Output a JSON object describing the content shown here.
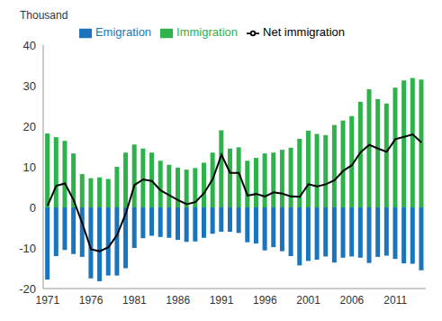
{
  "chart_data": {
    "type": "bar",
    "ylabel": "Thousand",
    "categories": [
      "1971",
      null,
      null,
      null,
      null,
      "1976",
      null,
      null,
      null,
      null,
      "1981",
      null,
      null,
      null,
      null,
      "1986",
      null,
      null,
      null,
      null,
      "1991",
      null,
      null,
      null,
      null,
      "1996",
      null,
      null,
      null,
      null,
      "2001",
      null,
      null,
      null,
      null,
      "2006",
      null,
      null,
      null,
      null,
      "2011",
      null,
      null,
      null
    ],
    "series": [
      {
        "name": "Immigration",
        "color": "#2eb24b",
        "type": "bar",
        "values": [
          18.2,
          17.3,
          16.4,
          13.3,
          8.2,
          7.2,
          7.4,
          7.0,
          10.0,
          13.5,
          15.5,
          14.5,
          13.5,
          11.5,
          10.5,
          9.8,
          9.3,
          9.7,
          11.0,
          13.5,
          19.0,
          14.5,
          14.8,
          11.5,
          12.2,
          13.3,
          13.5,
          14.2,
          14.7,
          16.9,
          18.9,
          18.1,
          17.8,
          20.3,
          21.4,
          22.5,
          26.0,
          29.1,
          26.7,
          25.6,
          29.5,
          31.3,
          31.9,
          31.5
        ]
      },
      {
        "name": "Emigration",
        "color": "#1b75bc",
        "type": "bar",
        "values": [
          -17.8,
          -12.0,
          -10.5,
          -11.5,
          -12.2,
          -17.5,
          -18.2,
          -16.8,
          -16.8,
          -15.0,
          -10.0,
          -7.6,
          -7.0,
          -7.3,
          -7.5,
          -8.0,
          -8.5,
          -8.4,
          -7.5,
          -6.5,
          -6.0,
          -6.0,
          -6.3,
          -8.6,
          -8.9,
          -10.6,
          -9.8,
          -10.8,
          -12.0,
          -14.3,
          -13.2,
          -12.9,
          -12.1,
          -13.6,
          -12.4,
          -12.1,
          -12.4,
          -13.7,
          -12.2,
          -11.9,
          -12.7,
          -13.8,
          -13.9,
          -15.5
        ]
      },
      {
        "name": "Net immigration",
        "color": "#000000",
        "type": "line",
        "values": [
          0.4,
          5.3,
          5.9,
          1.8,
          -4.0,
          -10.3,
          -10.8,
          -9.8,
          -6.8,
          -1.5,
          5.5,
          6.9,
          6.5,
          4.2,
          3.0,
          1.8,
          0.8,
          1.3,
          3.5,
          7.0,
          13.0,
          8.5,
          8.5,
          2.9,
          3.3,
          2.7,
          3.7,
          3.4,
          2.7,
          2.6,
          5.7,
          5.2,
          5.7,
          6.7,
          9.0,
          10.4,
          13.6,
          15.4,
          14.5,
          13.7,
          16.8,
          17.4,
          18.0,
          16.0
        ]
      }
    ],
    "ylim": [
      -20,
      40
    ],
    "yticks": [
      -20,
      -10,
      0,
      10,
      20,
      30,
      40
    ],
    "stacked": true,
    "grid": false,
    "legend": "top"
  }
}
